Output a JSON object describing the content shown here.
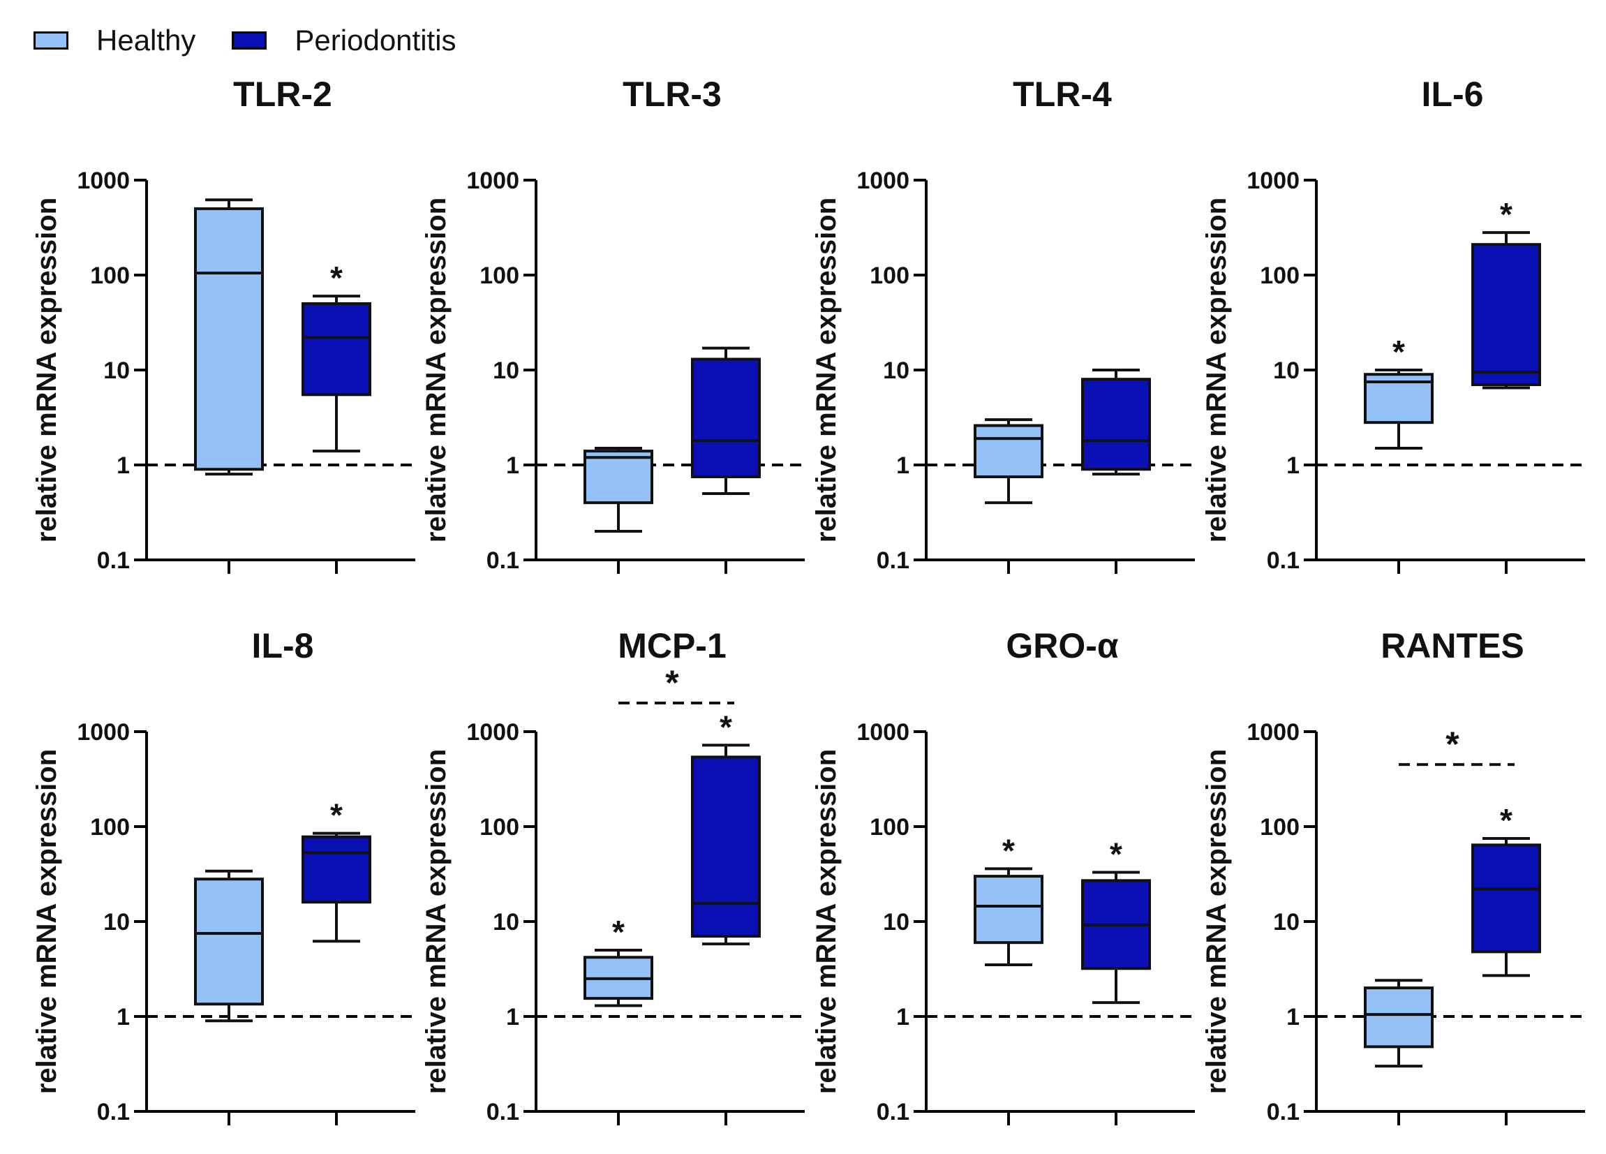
{
  "legend": {
    "healthy_label": "Healthy",
    "periodontitis_label": "Periodontitis"
  },
  "colors": {
    "healthy": "#94C1F7",
    "periodontitis": "#0A10B5",
    "axis": "#000000"
  },
  "chart_data": [
    {
      "type": "box",
      "title": "TLR-2",
      "ylabel": "relative mRNA expression",
      "yscale": "log",
      "ylim": [
        0.1,
        1000
      ],
      "yticks": [
        "0.1",
        "1",
        "10",
        "100",
        "1000"
      ],
      "reference_line": 1,
      "groups": [
        {
          "name": "Healthy",
          "min": 0.8,
          "q1": 0.9,
          "median": 105,
          "q3": 500,
          "max": 620,
          "marker": ""
        },
        {
          "name": "Periodontitis",
          "min": 1.4,
          "q1": 5.5,
          "median": 22,
          "q3": 50,
          "max": 60,
          "marker": "*"
        }
      ],
      "comparison": null
    },
    {
      "type": "box",
      "title": "TLR-3",
      "ylabel": "relative mRNA expression",
      "yscale": "log",
      "ylim": [
        0.1,
        1000
      ],
      "yticks": [
        "0.1",
        "1",
        "10",
        "100",
        "1000"
      ],
      "reference_line": 1,
      "groups": [
        {
          "name": "Healthy",
          "min": 0.2,
          "q1": 0.4,
          "median": 1.2,
          "q3": 1.4,
          "max": 1.5,
          "marker": ""
        },
        {
          "name": "Periodontitis",
          "min": 0.5,
          "q1": 0.75,
          "median": 1.8,
          "q3": 13,
          "max": 17,
          "marker": ""
        }
      ],
      "comparison": null
    },
    {
      "type": "box",
      "title": "TLR-4",
      "ylabel": "relative mRNA expression",
      "yscale": "log",
      "ylim": [
        0.1,
        1000
      ],
      "yticks": [
        "0.1",
        "1",
        "10",
        "100",
        "1000"
      ],
      "reference_line": 1,
      "groups": [
        {
          "name": "Healthy",
          "min": 0.4,
          "q1": 0.75,
          "median": 1.9,
          "q3": 2.6,
          "max": 3.0,
          "marker": ""
        },
        {
          "name": "Periodontitis",
          "min": 0.8,
          "q1": 0.9,
          "median": 1.8,
          "q3": 8,
          "max": 10,
          "marker": ""
        }
      ],
      "comparison": null
    },
    {
      "type": "box",
      "title": "IL-6",
      "ylabel": "relative mRNA expression",
      "yscale": "log",
      "ylim": [
        0.1,
        1000
      ],
      "yticks": [
        "0.1",
        "1",
        "10",
        "100",
        "1000"
      ],
      "reference_line": 1,
      "groups": [
        {
          "name": "Healthy",
          "min": 1.5,
          "q1": 2.8,
          "median": 7.5,
          "q3": 9,
          "max": 10,
          "marker": "*"
        },
        {
          "name": "Periodontitis",
          "min": 6.5,
          "q1": 7,
          "median": 9.5,
          "q3": 210,
          "max": 280,
          "marker": "*"
        }
      ],
      "comparison": null
    },
    {
      "type": "box",
      "title": "IL-8",
      "ylabel": "relative mRNA expression",
      "yscale": "log",
      "ylim": [
        0.1,
        1000
      ],
      "yticks": [
        "0.1",
        "1",
        "10",
        "100",
        "1000"
      ],
      "reference_line": 1,
      "groups": [
        {
          "name": "Healthy",
          "min": 0.9,
          "q1": 1.35,
          "median": 7.5,
          "q3": 28,
          "max": 34,
          "marker": ""
        },
        {
          "name": "Periodontitis",
          "min": 6.2,
          "q1": 16,
          "median": 53,
          "q3": 78,
          "max": 85,
          "marker": "*"
        }
      ],
      "comparison": null
    },
    {
      "type": "box",
      "title": "MCP-1",
      "ylabel": "relative mRNA expression",
      "yscale": "log",
      "ylim": [
        0.1,
        1000
      ],
      "yticks": [
        "0.1",
        "1",
        "10",
        "100",
        "1000"
      ],
      "reference_line": 1,
      "groups": [
        {
          "name": "Healthy",
          "min": 1.3,
          "q1": 1.55,
          "median": 2.5,
          "q3": 4.2,
          "max": 5.0,
          "marker": "*"
        },
        {
          "name": "Periodontitis",
          "min": 5.8,
          "q1": 7,
          "median": 15.5,
          "q3": 540,
          "max": 720,
          "marker": "*"
        }
      ],
      "comparison": {
        "marker": "*",
        "value": 2000
      }
    },
    {
      "type": "box",
      "title": "GRO-α",
      "ylabel": "relative mRNA expression",
      "yscale": "log",
      "ylim": [
        0.1,
        1000
      ],
      "yticks": [
        "0.1",
        "1",
        "10",
        "100",
        "1000"
      ],
      "reference_line": 1,
      "groups": [
        {
          "name": "Healthy",
          "min": 3.5,
          "q1": 6,
          "median": 14.5,
          "q3": 30,
          "max": 36,
          "marker": "*"
        },
        {
          "name": "Periodontitis",
          "min": 1.4,
          "q1": 3.2,
          "median": 9.2,
          "q3": 27,
          "max": 33,
          "marker": "*"
        }
      ],
      "comparison": null
    },
    {
      "type": "box",
      "title": "RANTES",
      "ylabel": "relative mRNA expression",
      "yscale": "log",
      "ylim": [
        0.1,
        1000
      ],
      "yticks": [
        "0.1",
        "1",
        "10",
        "100",
        "1000"
      ],
      "reference_line": 1,
      "groups": [
        {
          "name": "Healthy",
          "min": 0.3,
          "q1": 0.48,
          "median": 1.05,
          "q3": 2.0,
          "max": 2.4,
          "marker": ""
        },
        {
          "name": "Periodontitis",
          "min": 2.7,
          "q1": 4.8,
          "median": 22,
          "q3": 64,
          "max": 75,
          "marker": "*"
        }
      ],
      "comparison": {
        "marker": "*",
        "value": 450
      }
    }
  ]
}
